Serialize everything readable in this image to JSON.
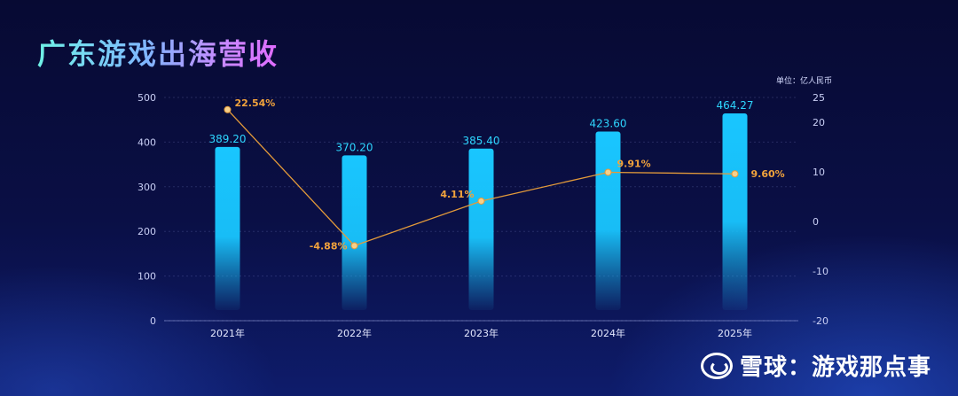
{
  "title": "广东游戏出海营收",
  "unit_label": "单位：亿人民币",
  "watermark": "雪球：游戏那点事",
  "watermark_icon": "snowball-logo-icon",
  "colors": {
    "bar": "#19c6ff",
    "line": "#e39a3a",
    "bar_label": "#2ed6ff",
    "line_label": "#f2a33c",
    "axis_text": "#c9cff5"
  },
  "chart_data": {
    "type": "bar",
    "categories": [
      "2021年",
      "2022年",
      "2023年",
      "2024年",
      "2025年"
    ],
    "series": [
      {
        "type": "bar",
        "axis": "left",
        "values": [
          389.2,
          370.2,
          385.4,
          423.6,
          464.27
        ],
        "labels": [
          "389.20",
          "370.20",
          "385.40",
          "423.60",
          "464.27"
        ]
      },
      {
        "type": "line",
        "axis": "right",
        "values": [
          22.54,
          -4.88,
          4.11,
          9.91,
          9.6
        ],
        "labels": [
          "22.54%",
          "-4.88%",
          "4.11%",
          "9.91%",
          "9.60%"
        ]
      }
    ],
    "y_left": {
      "min": 0,
      "max": 500,
      "ticks": [
        0,
        100,
        200,
        300,
        400,
        500
      ]
    },
    "y_right": {
      "min": -20,
      "max": 25,
      "ticks": [
        -20,
        -10,
        0,
        10,
        20,
        25
      ]
    },
    "grid": true
  }
}
